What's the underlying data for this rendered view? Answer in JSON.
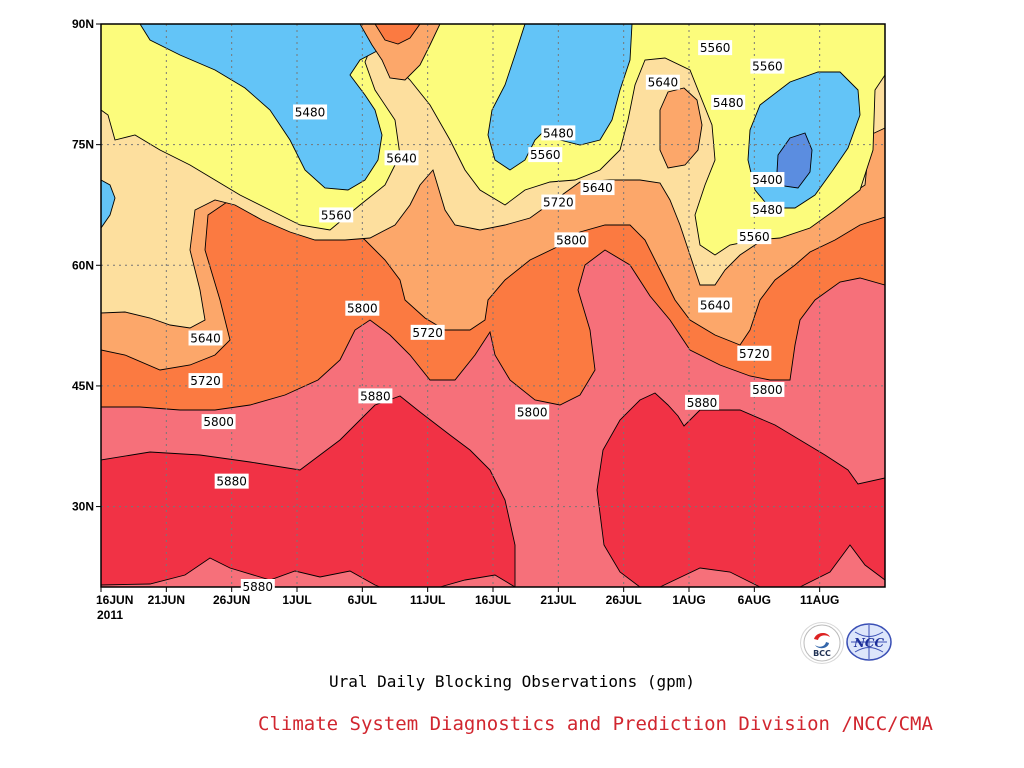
{
  "chart_data": {
    "type": "heatmap",
    "title": "Ural Daily Blocking Observations (gpm)",
    "x_ticks": [
      "16JUN",
      "21JUN",
      "26JUN",
      "1JUL",
      "6JUL",
      "11JUL",
      "16JUL",
      "21JUL",
      "26JUL",
      "1AUG",
      "6AUG",
      "11AUG"
    ],
    "x_year": "2011",
    "y_ticks": [
      "90N",
      "75N",
      "60N",
      "45N",
      "30N"
    ],
    "ylim": [
      20,
      90
    ],
    "xrange": [
      "2011-06-16",
      "2011-08-15"
    ],
    "levels": [
      5400,
      5480,
      5560,
      5640,
      5720,
      5800,
      5880
    ],
    "colors": {
      "below_5400": "#5b8de0",
      "5400_5480": "#63c4f7",
      "5480_5560": "#fcfc7c",
      "5560_5640": "#fddf9e",
      "5640_5720": "#fca76a",
      "5720_5800": "#fb7a41",
      "5800_5880": "#f6707a",
      "above_5880": "#f13245"
    },
    "contour_labels": [
      {
        "value": "5480",
        "date": "2011-07-02",
        "lat": 79.0
      },
      {
        "value": "5560",
        "date": "2011-08-02",
        "lat": 87.0
      },
      {
        "value": "5640",
        "date": "2011-07-29",
        "lat": 82.7
      },
      {
        "value": "5560",
        "date": "2011-08-06",
        "lat": 84.7
      },
      {
        "value": "5480",
        "date": "2011-08-03",
        "lat": 80.2
      },
      {
        "value": "5480",
        "date": "2011-07-21",
        "lat": 76.4
      },
      {
        "value": "5560",
        "date": "2011-07-20",
        "lat": 73.7
      },
      {
        "value": "5640",
        "date": "2011-07-09",
        "lat": 73.3
      },
      {
        "value": "5640",
        "date": "2011-07-24",
        "lat": 69.6
      },
      {
        "value": "5400",
        "date": "2011-08-06",
        "lat": 70.6
      },
      {
        "value": "5560",
        "date": "2011-07-04",
        "lat": 66.2
      },
      {
        "value": "5720",
        "date": "2011-07-21",
        "lat": 67.8
      },
      {
        "value": "5480",
        "date": "2011-08-06",
        "lat": 66.9
      },
      {
        "value": "5800",
        "date": "2011-07-22",
        "lat": 63.1
      },
      {
        "value": "5560",
        "date": "2011-08-05",
        "lat": 63.5
      },
      {
        "value": "5640",
        "date": "2011-08-02",
        "lat": 55.0
      },
      {
        "value": "5800",
        "date": "2011-07-06",
        "lat": 54.6
      },
      {
        "value": "5640",
        "date": "2011-06-24",
        "lat": 50.9
      },
      {
        "value": "5720",
        "date": "2011-07-11",
        "lat": 51.6
      },
      {
        "value": "5720",
        "date": "2011-08-05",
        "lat": 49.0
      },
      {
        "value": "5720",
        "date": "2011-06-24",
        "lat": 45.6
      },
      {
        "value": "5800",
        "date": "2011-08-06",
        "lat": 44.5
      },
      {
        "value": "5880",
        "date": "2011-07-07",
        "lat": 43.7
      },
      {
        "value": "5880",
        "date": "2011-08-01",
        "lat": 42.9
      },
      {
        "value": "5800",
        "date": "2011-07-19",
        "lat": 41.7
      },
      {
        "value": "5800",
        "date": "2011-06-25",
        "lat": 40.5
      },
      {
        "value": "5880",
        "date": "2011-06-26",
        "lat": 33.1
      },
      {
        "value": "5880",
        "date": "2011-06-28",
        "lat": 20.0
      }
    ]
  },
  "footer": {
    "caption": "Ural Daily Blocking Observations (gpm)",
    "credit": "Climate System Diagnostics and Prediction Division /NCC/CMA",
    "logo_left_text": "BCC",
    "logo_right_text": "NCC"
  }
}
